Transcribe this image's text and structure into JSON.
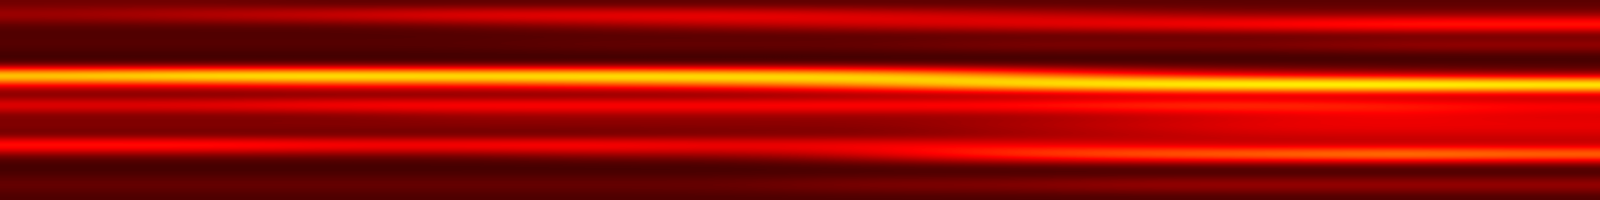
{
  "chart_data": {
    "type": "heatmap",
    "color": "hot",
    "tick_labels": false,
    "color_range": [
      0,
      1
    ],
    "cells": [
      [
        0.15,
        0.15,
        0.12,
        0.12,
        0.12,
        0.12,
        0.12,
        0.12,
        0.12,
        0.12,
        0.12,
        0.12
      ],
      [
        0.25,
        0.3,
        0.35,
        0.4,
        0.4,
        0.4,
        0.35,
        0.3,
        0.25,
        0.2,
        0.2,
        0.2
      ],
      [
        0.12,
        0.12,
        0.12,
        0.15,
        0.2,
        0.25,
        0.3,
        0.35,
        0.4,
        0.45,
        0.5,
        0.5
      ],
      [
        0.1,
        0.1,
        0.1,
        0.1,
        0.1,
        0.1,
        0.1,
        0.1,
        0.1,
        0.1,
        0.1,
        0.1
      ],
      [
        0.12,
        0.12,
        0.12,
        0.12,
        0.15,
        0.15,
        0.15,
        0.2,
        0.2,
        0.2,
        0.25,
        0.25
      ],
      [
        0.08,
        0.08,
        0.08,
        0.08,
        0.08,
        0.08,
        0.08,
        0.08,
        0.08,
        0.08,
        0.08,
        0.08
      ],
      [
        0.1,
        0.1,
        0.1,
        0.1,
        0.1,
        0.1,
        0.1,
        0.1,
        0.1,
        0.1,
        0.1,
        0.1
      ],
      [
        0.85,
        0.9,
        0.9,
        0.88,
        0.88,
        0.85,
        0.8,
        0.6,
        0.4,
        0.3,
        0.25,
        0.2
      ],
      [
        0.35,
        0.35,
        0.4,
        0.4,
        0.45,
        0.5,
        0.6,
        0.8,
        0.9,
        0.95,
        0.97,
        0.95
      ],
      [
        0.12,
        0.12,
        0.12,
        0.12,
        0.12,
        0.12,
        0.15,
        0.15,
        0.2,
        0.2,
        0.2,
        0.2
      ],
      [
        0.4,
        0.4,
        0.45,
        0.45,
        0.45,
        0.45,
        0.45,
        0.45,
        0.5,
        0.5,
        0.45,
        0.4
      ],
      [
        0.15,
        0.15,
        0.15,
        0.2,
        0.2,
        0.2,
        0.2,
        0.2,
        0.25,
        0.3,
        0.35,
        0.3
      ],
      [
        0.2,
        0.2,
        0.2,
        0.2,
        0.2,
        0.2,
        0.2,
        0.25,
        0.3,
        0.35,
        0.35,
        0.35
      ],
      [
        0.12,
        0.12,
        0.12,
        0.12,
        0.12,
        0.15,
        0.15,
        0.2,
        0.25,
        0.3,
        0.3,
        0.3
      ],
      [
        0.5,
        0.5,
        0.45,
        0.45,
        0.45,
        0.4,
        0.4,
        0.35,
        0.3,
        0.25,
        0.25,
        0.25
      ],
      [
        0.15,
        0.15,
        0.15,
        0.15,
        0.2,
        0.2,
        0.3,
        0.5,
        0.6,
        0.65,
        0.7,
        0.65
      ],
      [
        0.08,
        0.08,
        0.08,
        0.08,
        0.08,
        0.08,
        0.1,
        0.1,
        0.1,
        0.1,
        0.1,
        0.1
      ],
      [
        0.1,
        0.1,
        0.1,
        0.1,
        0.1,
        0.1,
        0.1,
        0.1,
        0.1,
        0.1,
        0.1,
        0.1
      ],
      [
        0.15,
        0.15,
        0.15,
        0.15,
        0.15,
        0.15,
        0.2,
        0.2,
        0.25,
        0.25,
        0.25,
        0.25
      ],
      [
        0.1,
        0.1,
        0.1,
        0.1,
        0.1,
        0.1,
        0.1,
        0.1,
        0.1,
        0.1,
        0.1,
        0.1
      ]
    ]
  }
}
